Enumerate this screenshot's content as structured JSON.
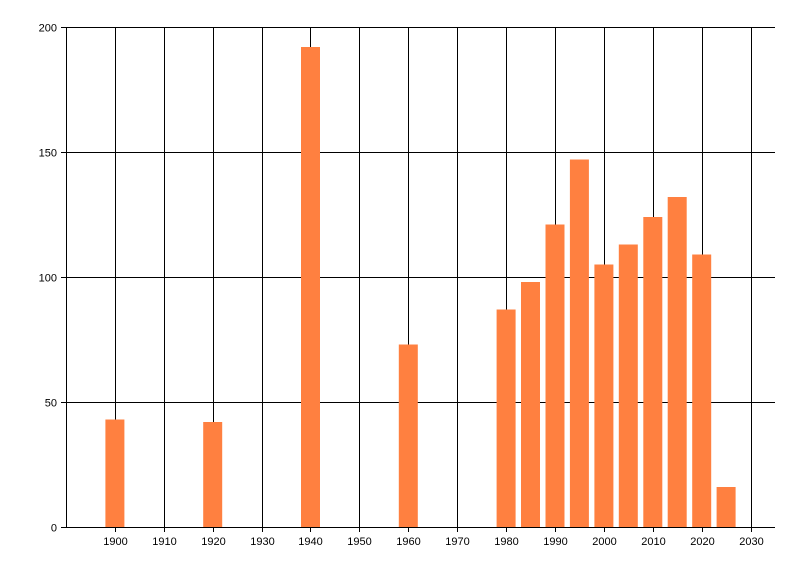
{
  "chart_data": {
    "type": "bar",
    "title": "",
    "xlabel": "",
    "ylabel": "",
    "x": [
      1900,
      1920,
      1940,
      1960,
      1980,
      1985,
      1990,
      1995,
      2000,
      2005,
      2010,
      2015,
      2020,
      2025
    ],
    "values": [
      43,
      42,
      192,
      73,
      87,
      98,
      121,
      147,
      105,
      113,
      124,
      132,
      109,
      16
    ],
    "xlim": [
      1890,
      2035
    ],
    "ylim": [
      0,
      200
    ],
    "x_ticks": [
      1900,
      1910,
      1920,
      1930,
      1940,
      1950,
      1960,
      1970,
      1980,
      1990,
      2000,
      2010,
      2020,
      2030
    ],
    "y_ticks": [
      0,
      50,
      100,
      150,
      200
    ],
    "grid": true,
    "legend": "none",
    "bar_color": "#ff8040"
  }
}
